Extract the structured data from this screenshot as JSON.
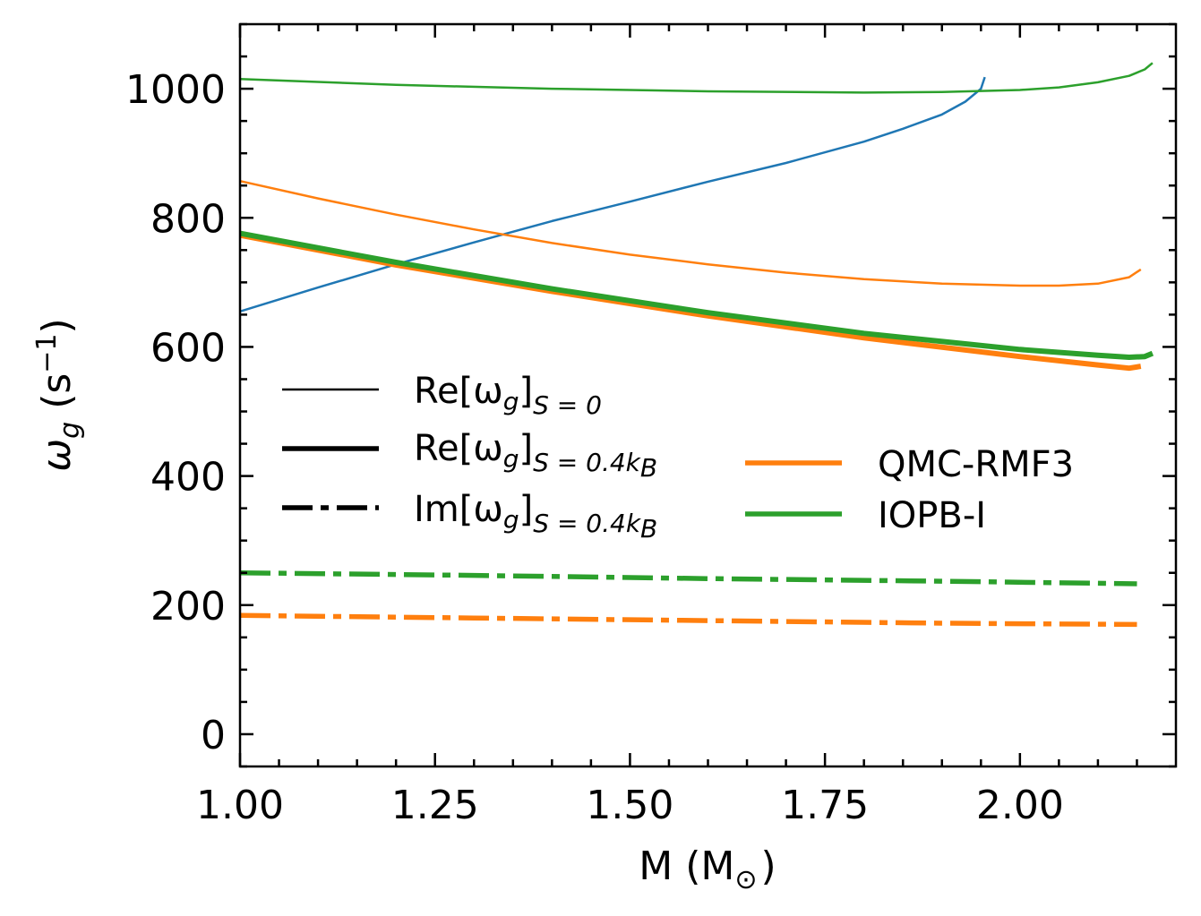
{
  "chart_data": {
    "type": "line",
    "xlabel": "M (M⊙)",
    "xlabel_main": "M (M",
    "xlabel_sub": "⊙",
    "xlabel_close": ")",
    "ylabel": "ωg (s⁻¹)",
    "ylabel_omega": "ω",
    "ylabel_g": "g",
    "ylabel_unit": "(s",
    "ylabel_exp": "−1",
    "ylabel_close": ")",
    "xlim": [
      1.0,
      2.2
    ],
    "ylim": [
      -50,
      1100
    ],
    "xticks": [
      1.0,
      1.25,
      1.5,
      1.75,
      2.0
    ],
    "xtick_labels": [
      "1.00",
      "1.25",
      "1.50",
      "1.75",
      "2.00"
    ],
    "yticks": [
      0,
      200,
      400,
      600,
      800,
      1000
    ],
    "ytick_labels": [
      "0",
      "200",
      "400",
      "600",
      "800",
      "1000"
    ],
    "colors": {
      "blue": "#1f77b4",
      "orange": "#ff7f0e",
      "green": "#2ca02c"
    },
    "series": [
      {
        "name": "blue Re[ωg]S=0",
        "color": "blue",
        "style": "thin",
        "x": [
          1.0,
          1.1,
          1.2,
          1.3,
          1.4,
          1.5,
          1.6,
          1.7,
          1.8,
          1.85,
          1.9,
          1.93,
          1.95,
          1.955
        ],
        "y": [
          655,
          692,
          728,
          762,
          795,
          825,
          856,
          885,
          918,
          938,
          960,
          980,
          1000,
          1018
        ]
      },
      {
        "name": "orange Re[ωg]S=0",
        "color": "orange",
        "style": "thin",
        "x": [
          1.0,
          1.1,
          1.2,
          1.3,
          1.4,
          1.5,
          1.6,
          1.7,
          1.8,
          1.9,
          2.0,
          2.05,
          2.1,
          2.14,
          2.155
        ],
        "y": [
          857,
          830,
          805,
          782,
          761,
          743,
          728,
          715,
          705,
          698,
          695,
          695,
          698,
          708,
          720
        ]
      },
      {
        "name": "green Re[ωg]S=0",
        "color": "green",
        "style": "thin",
        "x": [
          1.0,
          1.2,
          1.4,
          1.6,
          1.8,
          1.9,
          2.0,
          2.05,
          2.1,
          2.14,
          2.16,
          2.17
        ],
        "y": [
          1015,
          1006,
          1000,
          996,
          994,
          995,
          998,
          1002,
          1010,
          1020,
          1030,
          1040
        ]
      },
      {
        "name": "orange Re[ωg]S=0.4kB",
        "color": "orange",
        "style": "thick",
        "x": [
          1.0,
          1.2,
          1.4,
          1.6,
          1.8,
          2.0,
          2.1,
          2.14,
          2.155
        ],
        "y": [
          773,
          727,
          686,
          648,
          614,
          585,
          572,
          567,
          570
        ]
      },
      {
        "name": "green Re[ωg]S=0.4kB",
        "color": "green",
        "style": "thick",
        "x": [
          1.0,
          1.2,
          1.4,
          1.6,
          1.8,
          2.0,
          2.1,
          2.14,
          2.16,
          2.17
        ],
        "y": [
          776,
          731,
          690,
          653,
          621,
          596,
          587,
          584,
          585,
          590
        ]
      },
      {
        "name": "green Im[ωg]S=0.4kB",
        "color": "green",
        "style": "dashdot",
        "x": [
          1.0,
          1.3,
          1.6,
          1.9,
          2.15
        ],
        "y": [
          250,
          246,
          241,
          237,
          233
        ]
      },
      {
        "name": "orange Im[ωg]S=0.4kB",
        "color": "orange",
        "style": "dashdot",
        "x": [
          1.0,
          1.3,
          1.6,
          1.9,
          2.15
        ],
        "y": [
          184,
          180,
          176,
          172,
          170
        ]
      }
    ],
    "legend_styles": [
      {
        "main": "Re[ω",
        "g": "g",
        "close": "]",
        "sub": "S = 0",
        "style": "thin"
      },
      {
        "main": "Re[ω",
        "g": "g",
        "close": "]",
        "sub": "S = 0.4k",
        "subB": "B",
        "style": "thick"
      },
      {
        "main": "Im[ω",
        "g": "g",
        "close": "]",
        "sub": "S = 0.4k",
        "subB": "B",
        "style": "dashdot"
      }
    ],
    "legend_models": [
      {
        "label": "QMC-RMF3",
        "color": "orange"
      },
      {
        "label": "IOPB-I",
        "color": "green"
      }
    ]
  }
}
